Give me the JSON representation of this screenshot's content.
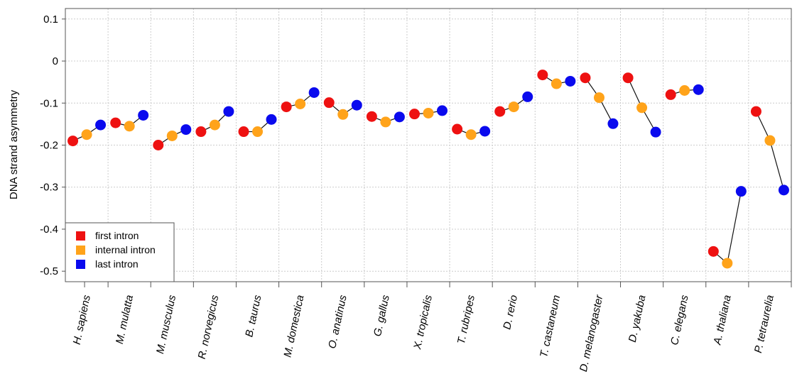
{
  "chart_data": {
    "type": "scatter",
    "title": "",
    "xlabel": "",
    "ylabel": "DNA strand asymmetry",
    "ylim": [
      -0.525,
      0.125
    ],
    "yticks": [
      0.1,
      0,
      -0.1,
      -0.2,
      -0.3,
      -0.4,
      -0.5
    ],
    "ytick_labels": [
      "0.1",
      "0",
      "-0.1",
      "-0.2",
      "-0.3",
      "-0.4",
      "-0.5"
    ],
    "grid": true,
    "legend_position": "bottom-left",
    "categories": [
      "H. sapiens",
      "M. mulatta",
      "M. musculus",
      "R. norvegicus",
      "B. taurus",
      "M. domestica",
      "O. anatinus",
      "G. gallus",
      "X. tropicalis",
      "T. rubripes",
      "D. rerio",
      "T. castaneum",
      "D. melanogaster",
      "D. yakuba",
      "C. elegans",
      "A. thaliana",
      "P. tetraurelia"
    ],
    "series": [
      {
        "name": "first intron",
        "color": "#ee1111",
        "values": [
          -0.19,
          -0.147,
          -0.2,
          -0.168,
          -0.168,
          -0.109,
          -0.099,
          -0.132,
          -0.126,
          -0.162,
          -0.12,
          -0.033,
          -0.04,
          -0.04,
          -0.08,
          -0.453,
          -0.12
        ]
      },
      {
        "name": "internal intron",
        "color": "#ffa31a",
        "values": [
          -0.175,
          -0.155,
          -0.178,
          -0.152,
          -0.168,
          -0.102,
          -0.127,
          -0.145,
          -0.124,
          -0.175,
          -0.109,
          -0.054,
          -0.087,
          -0.111,
          -0.07,
          -0.481,
          -0.189
        ]
      },
      {
        "name": "last intron",
        "color": "#0a0aee",
        "values": [
          -0.152,
          -0.129,
          -0.163,
          -0.12,
          -0.139,
          -0.075,
          -0.105,
          -0.133,
          -0.118,
          -0.167,
          -0.085,
          -0.048,
          -0.149,
          -0.169,
          -0.068,
          -0.31,
          -0.307
        ]
      }
    ]
  }
}
